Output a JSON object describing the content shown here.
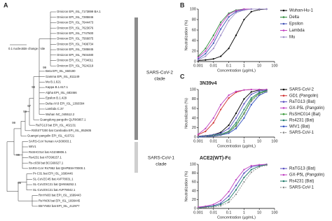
{
  "tree": {
    "panel_label": "A",
    "scale_label": "0.1 nucleotide change / site",
    "leaves": [
      "Omicron EPI_ISL_7173899 BA.1",
      "Omicron EPI_ISL_7285846",
      "Omicron EPI_ISL_7644473",
      "Omicron EPI_ISL_7623676",
      "Omicron EPI_ISL_7747500",
      "Omicron EPI_ISL_7566875",
      "Omicron EPI_ISL_7496734",
      "Omicron EPI_ISL_7285845",
      "Omicron EPI_ISL_7604480",
      "Omicron EPI_ISL_7734011",
      "Omicron EPI_ISL_7624219",
      "Beta EPI_ISL_660190",
      "Gamma EPI_ISL_811149",
      "Mu B.1.621",
      "Kappa B.1.617.1",
      "Alpha EPI_ISL_683466",
      "Epsilon B.1.429",
      "Delta AY.8 EPI_ISL_1360304",
      "Lambda C.37",
      "Wuhan NC_045512.2",
      "Guangdong pangolin QLR06867.1",
      "RaTG13 bat EPI_ISL_402131",
      "RShSTT200 bat Cambodia EPI_ISL_852605",
      "Guangxi pangolin EPI_ISL_410721",
      "SARS-CoV human AAS00003.1",
      "WIV1",
      "RsSHC014 bat AGZ48806.1",
      "Rs4231 bat ATO98157.1",
      "Rs-c039 bat BCG66627.1",
      "SARS-CoV Rs7952 bat QIHPBSH70000.1",
      "Pr-C31 bat EPI_ISL_1699446",
      "SL-CoVZC45 bat AVP78031.1",
      "SL-CoVZXC21 bat QHN56252.1",
      "SL-CoVZXC21 bat AVP78042.1",
      "RmYN03 bat EPI_ISL_1699443",
      "RsYN06 bat EPI_ISL_1699445",
      "BtrrYN02 bat EPI_ISL_412977"
    ],
    "bootstrap": [
      99,
      98,
      97,
      99,
      99,
      99,
      99
    ],
    "clades": [
      {
        "lines": [
          "SARS-CoV-2",
          "clade"
        ]
      },
      {
        "lines": [
          "SARS-CoV-1",
          "clade"
        ]
      }
    ]
  },
  "chart_data": [
    {
      "type": "line",
      "panel_label": "B",
      "x_label": "Concentration (µg/mL)",
      "y_label": "Neutralization (%)",
      "xscale": "log",
      "xlim": [
        0.001,
        100
      ],
      "xticks": [
        0.001,
        0.01,
        0.1,
        1,
        10,
        100
      ],
      "ylim": [
        0,
        100
      ],
      "yticks": [
        0,
        20,
        40,
        60,
        80,
        100
      ],
      "x": [
        0.001,
        0.003,
        0.01,
        0.03,
        0.1,
        0.3,
        1,
        3,
        10,
        30
      ],
      "series": [
        {
          "name": "Wuhan-Hu-1",
          "color": "#000000",
          "values": [
            2,
            3,
            5,
            10,
            25,
            50,
            80,
            95,
            99,
            100
          ]
        },
        {
          "name": "Delta",
          "color": "#2e8b3a",
          "values": [
            10,
            25,
            50,
            75,
            92,
            98,
            100,
            100,
            100,
            100
          ]
        },
        {
          "name": "Epsilon",
          "color": "#3f51b5",
          "values": [
            5,
            15,
            35,
            62,
            85,
            95,
            99,
            100,
            100,
            100
          ]
        },
        {
          "name": "Lambda",
          "color": "#c040c0",
          "values": [
            8,
            20,
            42,
            70,
            90,
            97,
            100,
            100,
            100,
            100
          ]
        },
        {
          "name": "Mu",
          "color": "#9e8fc8",
          "values": [
            3,
            10,
            25,
            50,
            78,
            93,
            98,
            100,
            100,
            100
          ]
        }
      ]
    },
    {
      "type": "line",
      "panel_label": "C",
      "title": "3N39v4",
      "x_label": "Concentration (µg/mL)",
      "y_label": "Neutralization (%)",
      "xscale": "log",
      "xlim": [
        0.001,
        100
      ],
      "xticks": [
        0.001,
        0.01,
        0.1,
        1,
        10,
        100
      ],
      "ylim": [
        0,
        100
      ],
      "yticks": [
        0,
        20,
        40,
        60,
        80,
        100
      ],
      "x": [
        0.001,
        0.003,
        0.01,
        0.03,
        0.1,
        0.3,
        1,
        3,
        10,
        30
      ],
      "series": [
        {
          "name": "SARS-CoV-2",
          "color": "#000000",
          "values": [
            2,
            3,
            5,
            10,
            25,
            50,
            80,
            95,
            99,
            100
          ]
        },
        {
          "name": "GD1 (Pangolin)",
          "color": "#d03030",
          "values": [
            5,
            12,
            30,
            58,
            82,
            94,
            99,
            100,
            100,
            100
          ]
        },
        {
          "name": "RaTG13 (Bat)",
          "color": "#5a4fc0",
          "values": [
            2,
            3,
            5,
            8,
            18,
            40,
            70,
            90,
            97,
            99
          ]
        },
        {
          "name": "GX-P5L (Pangolin)",
          "color": "#c040c0",
          "values": [
            6,
            18,
            40,
            68,
            88,
            96,
            99,
            100,
            100,
            100
          ]
        },
        {
          "name": "RsSHC014 (Bat)",
          "color": "#3a9a3a",
          "values": [
            1,
            2,
            3,
            5,
            10,
            25,
            50,
            78,
            92,
            97
          ]
        },
        {
          "name": "Rs4231 (Bat)",
          "color": "#1f7a6a",
          "values": [
            1,
            2,
            4,
            6,
            12,
            30,
            58,
            82,
            94,
            98
          ]
        },
        {
          "name": "WIV1 (Bat)",
          "color": "#3050c0",
          "values": [
            0,
            1,
            2,
            4,
            8,
            18,
            40,
            68,
            88,
            95
          ]
        },
        {
          "name": "SARS-CoV-1",
          "color": "#888888",
          "style": "dashed",
          "values": [
            1,
            2,
            3,
            5,
            10,
            22,
            48,
            75,
            90,
            96
          ]
        }
      ]
    },
    {
      "type": "line",
      "title": "ACE2(WT)-Fc",
      "x_label": "Concentration (µg/mL)",
      "y_label": "Neutralization (%)",
      "xscale": "log",
      "xlim": [
        0.001,
        100
      ],
      "xticks": [
        0.001,
        0.01,
        0.1,
        1,
        10,
        100
      ],
      "ylim": [
        0,
        100
      ],
      "yticks": [
        0,
        20,
        40,
        60,
        80,
        100
      ],
      "x": [
        0.001,
        0.003,
        0.01,
        0.03,
        0.1,
        0.3,
        1,
        3,
        10,
        30
      ],
      "series": [
        {
          "name": "RaTG13 (Bat)",
          "color": "#5a4fc0",
          "values": [
            2,
            4,
            6,
            12,
            28,
            52,
            80,
            94,
            98,
            100
          ]
        },
        {
          "name": "GX-P5L (Pangolin)",
          "color": "#c040c0",
          "values": [
            3,
            5,
            9,
            18,
            38,
            65,
            88,
            97,
            99,
            100
          ]
        },
        {
          "name": "Rs4231 (Bat)",
          "color": "#1f7a6a",
          "values": [
            1,
            3,
            5,
            9,
            20,
            42,
            70,
            88,
            96,
            99
          ]
        },
        {
          "name": "SARS-CoV-1",
          "color": "#888888",
          "style": "dashed",
          "values": [
            1,
            2,
            3,
            6,
            14,
            32,
            60,
            82,
            94,
            98
          ]
        }
      ]
    }
  ]
}
